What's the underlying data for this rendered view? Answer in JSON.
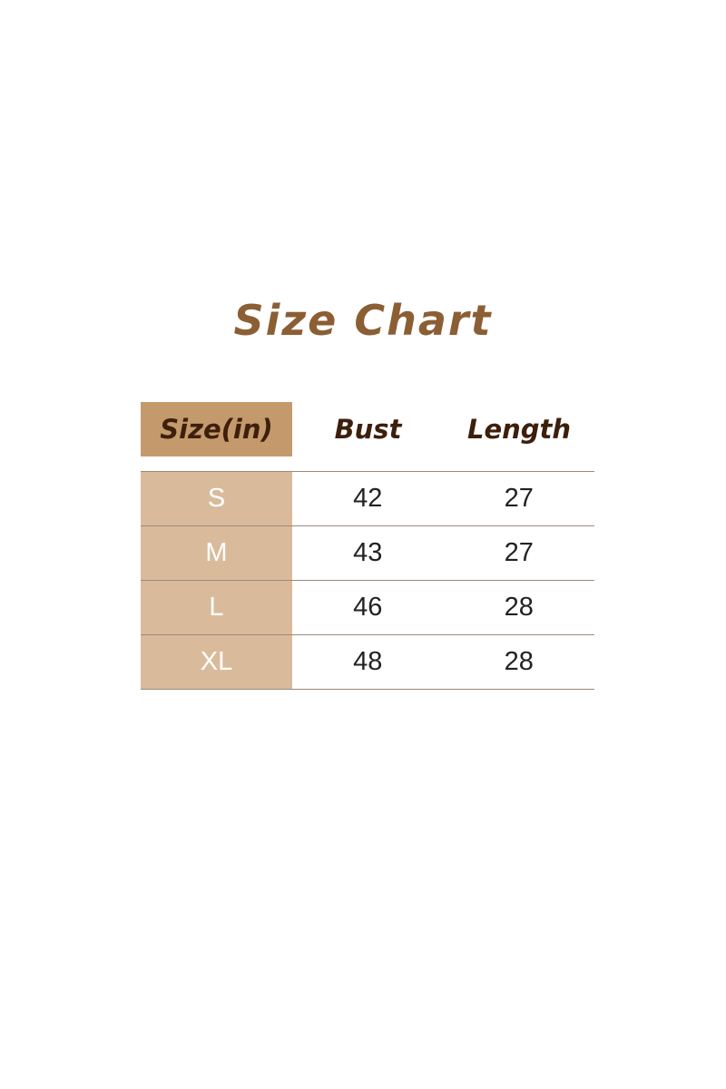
{
  "title": "Size Chart",
  "colors": {
    "title": "#8b5e34",
    "header_bg": "#c49a6c",
    "size_col_bg": "#d9bb9c",
    "header_text": "#3d1f0c"
  },
  "headers": [
    "Size(in)",
    "Bust",
    "Length"
  ],
  "rows": [
    {
      "size": "S",
      "bust": "42",
      "length": "27"
    },
    {
      "size": "M",
      "bust": "43",
      "length": "27"
    },
    {
      "size": "L",
      "bust": "46",
      "length": "28"
    },
    {
      "size": "XL",
      "bust": "48",
      "length": "28"
    }
  ]
}
